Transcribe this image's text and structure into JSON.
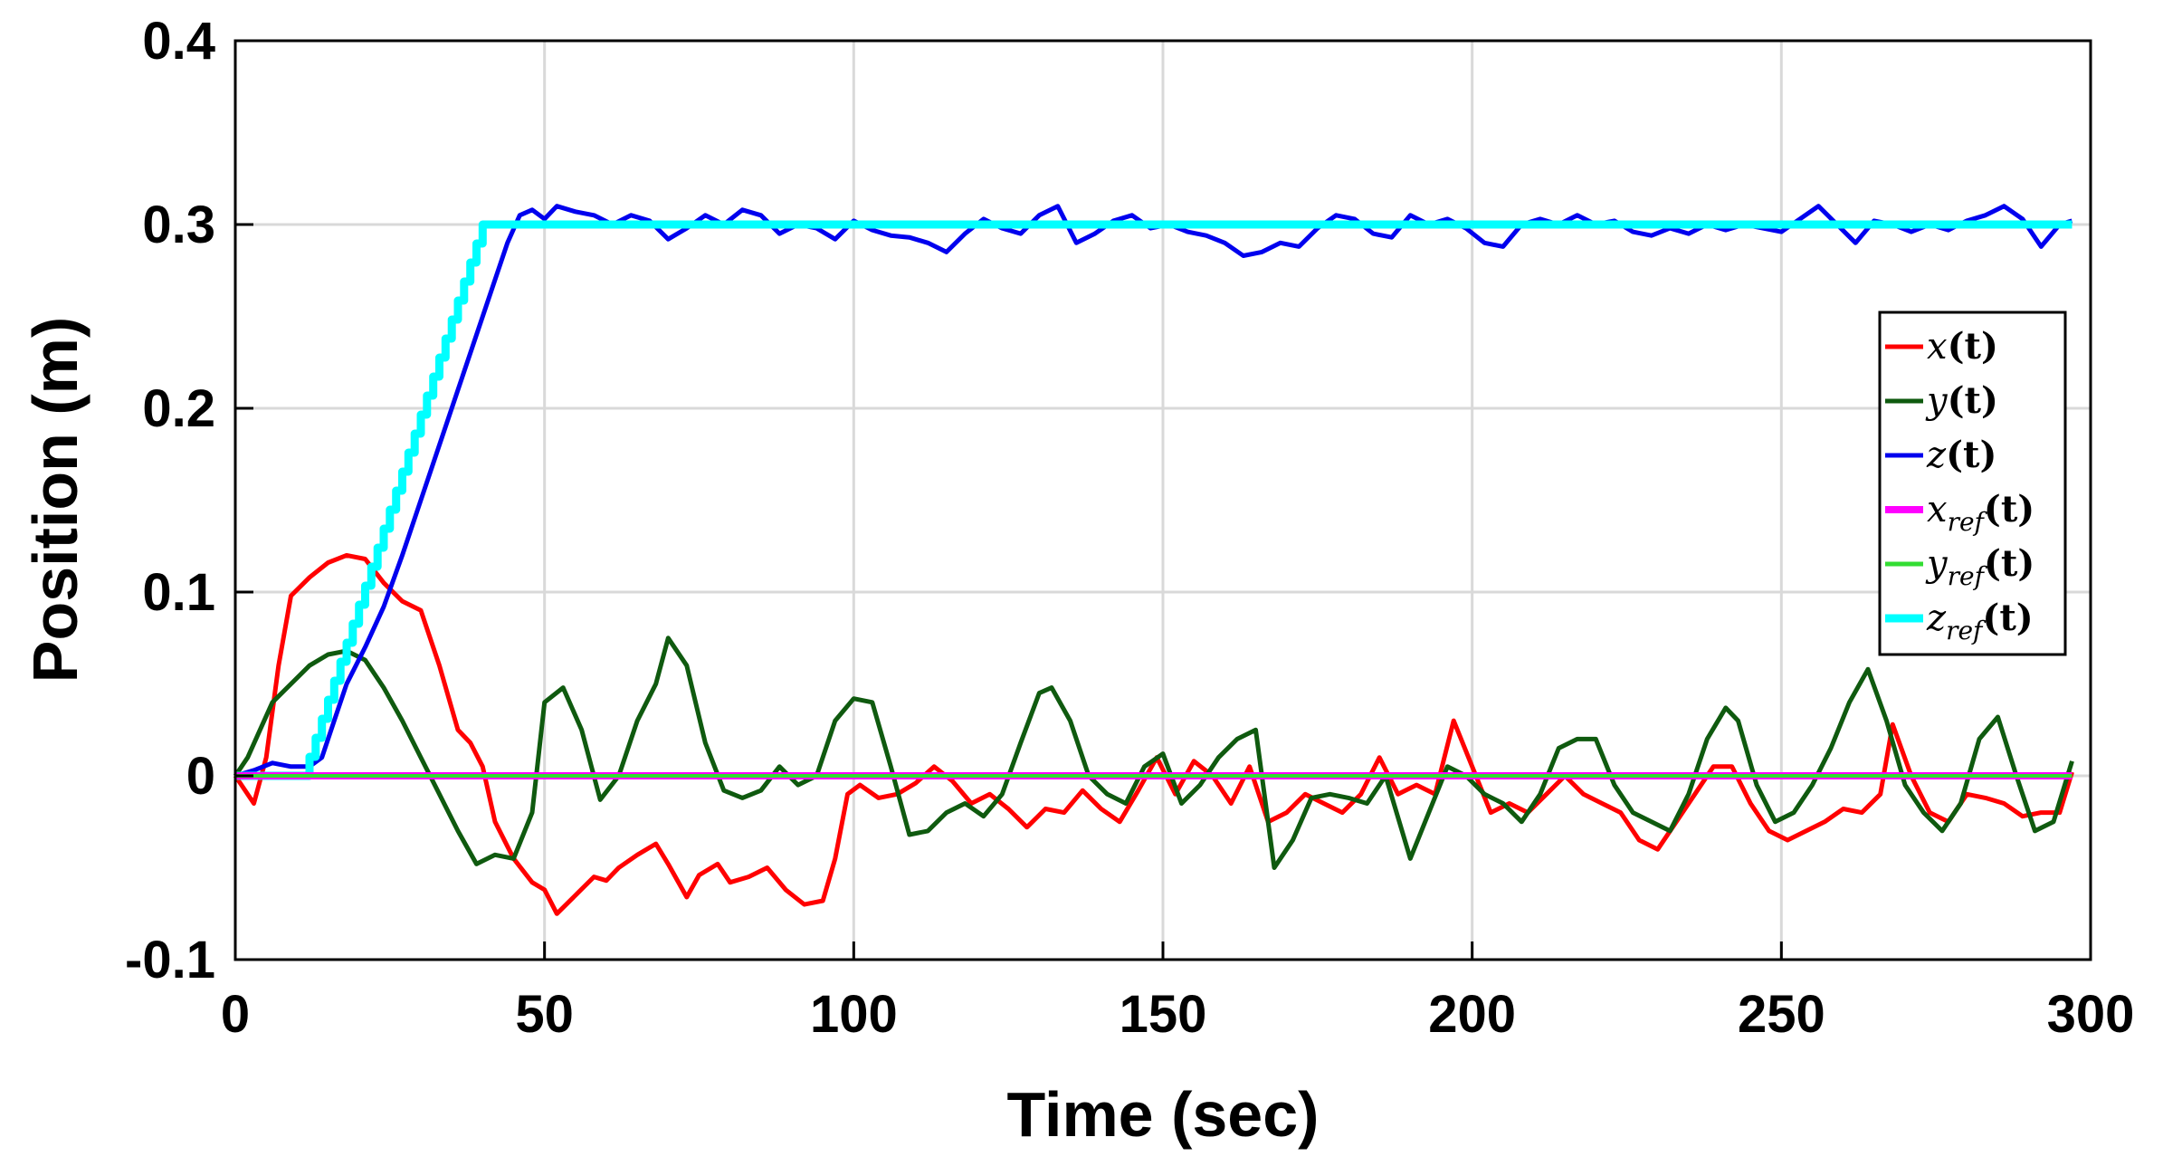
{
  "chart_data": {
    "type": "line",
    "title": "",
    "xlabel": "Time (sec)",
    "ylabel": "Position (m)",
    "xlim": [
      0,
      300
    ],
    "ylim": [
      -0.1,
      0.4
    ],
    "xticks": [
      0,
      50,
      100,
      150,
      200,
      250,
      300
    ],
    "xtick_labels": [
      "0",
      "50",
      "100",
      "150",
      "200",
      "250",
      "300"
    ],
    "yticks": [
      -0.1,
      0,
      0.1,
      0.2,
      0.3,
      0.4
    ],
    "ytick_labels": [
      "-0.1",
      "0",
      "0.1",
      "0.2",
      "0.3",
      "0.4"
    ],
    "grid": true,
    "legend_position": "right",
    "series": [
      {
        "name": "x(t)",
        "legend": {
          "base": "x",
          "sub": "",
          "arg": "(t)"
        },
        "color": "#ff0000",
        "x": [
          0,
          3,
          5,
          7,
          9,
          12,
          15,
          18,
          21,
          24,
          27,
          30,
          33,
          36,
          38,
          40,
          42,
          45,
          48,
          50,
          52,
          55,
          58,
          60,
          62,
          65,
          68,
          70,
          73,
          75,
          78,
          80,
          83,
          86,
          89,
          92,
          95,
          97,
          99,
          101,
          104,
          107,
          110,
          113,
          116,
          119,
          122,
          125,
          128,
          131,
          134,
          137,
          140,
          143,
          146,
          149,
          152,
          155,
          158,
          161,
          164,
          167,
          170,
          173,
          176,
          179,
          182,
          185,
          188,
          191,
          194,
          197,
          200,
          203,
          206,
          209,
          212,
          215,
          218,
          221,
          224,
          227,
          230,
          233,
          236,
          239,
          242,
          245,
          248,
          251,
          254,
          257,
          260,
          263,
          266,
          268,
          271,
          274,
          277,
          280,
          283,
          286,
          289,
          292,
          295,
          297
        ],
        "y": [
          0,
          -0.015,
          0.01,
          0.06,
          0.098,
          0.108,
          0.116,
          0.12,
          0.118,
          0.105,
          0.095,
          0.09,
          0.06,
          0.025,
          0.018,
          0.005,
          -0.025,
          -0.045,
          -0.058,
          -0.062,
          -0.075,
          -0.065,
          -0.055,
          -0.057,
          -0.05,
          -0.043,
          -0.037,
          -0.048,
          -0.066,
          -0.054,
          -0.048,
          -0.058,
          -0.055,
          -0.05,
          -0.062,
          -0.07,
          -0.068,
          -0.045,
          -0.01,
          -0.005,
          -0.012,
          -0.01,
          -0.004,
          0.005,
          -0.003,
          -0.015,
          -0.01,
          -0.018,
          -0.028,
          -0.018,
          -0.02,
          -0.008,
          -0.018,
          -0.025,
          -0.008,
          0.01,
          -0.01,
          0.008,
          0.0,
          -0.015,
          0.005,
          -0.025,
          -0.02,
          -0.01,
          -0.015,
          -0.02,
          -0.01,
          0.01,
          -0.01,
          -0.005,
          -0.01,
          0.03,
          0.005,
          -0.02,
          -0.015,
          -0.02,
          -0.01,
          0.0,
          -0.01,
          -0.015,
          -0.02,
          -0.035,
          -0.04,
          -0.025,
          -0.01,
          0.005,
          0.005,
          -0.015,
          -0.03,
          -0.035,
          -0.03,
          -0.025,
          -0.018,
          -0.02,
          -0.01,
          0.028,
          0.0,
          -0.02,
          -0.025,
          -0.01,
          -0.012,
          -0.015,
          -0.022,
          -0.02,
          -0.02,
          0.002
        ],
        "line_width": 5
      },
      {
        "name": "y(t)",
        "legend": {
          "base": "y",
          "sub": "",
          "arg": "(t)"
        },
        "color": "#0f5a0f",
        "x": [
          0,
          2,
          4,
          6,
          9,
          12,
          15,
          18,
          21,
          24,
          27,
          30,
          33,
          36,
          39,
          42,
          45,
          48,
          50,
          53,
          56,
          59,
          62,
          65,
          68,
          70,
          73,
          76,
          79,
          82,
          85,
          88,
          91,
          94,
          97,
          100,
          103,
          106,
          109,
          112,
          115,
          118,
          121,
          124,
          127,
          130,
          132,
          135,
          138,
          141,
          144,
          147,
          150,
          153,
          156,
          159,
          162,
          165,
          168,
          171,
          174,
          177,
          180,
          183,
          186,
          190,
          193,
          196,
          199,
          202,
          205,
          208,
          211,
          214,
          217,
          220,
          223,
          226,
          229,
          232,
          235,
          238,
          241,
          243,
          246,
          249,
          252,
          255,
          258,
          261,
          264,
          267,
          270,
          273,
          276,
          279,
          282,
          285,
          288,
          291,
          294,
          297
        ],
        "y": [
          0,
          0.01,
          0.025,
          0.04,
          0.05,
          0.06,
          0.066,
          0.068,
          0.063,
          0.048,
          0.03,
          0.01,
          -0.01,
          -0.03,
          -0.048,
          -0.043,
          -0.045,
          -0.02,
          0.04,
          0.048,
          0.025,
          -0.013,
          0.0,
          0.03,
          0.05,
          0.075,
          0.06,
          0.018,
          -0.008,
          -0.012,
          -0.008,
          0.005,
          -0.005,
          0.0,
          0.03,
          0.042,
          0.04,
          0.005,
          -0.032,
          -0.03,
          -0.02,
          -0.015,
          -0.022,
          -0.01,
          0.018,
          0.045,
          0.048,
          0.03,
          0.0,
          -0.01,
          -0.015,
          0.005,
          0.012,
          -0.015,
          -0.005,
          0.01,
          0.02,
          0.025,
          -0.05,
          -0.035,
          -0.012,
          -0.01,
          -0.012,
          -0.015,
          0.0,
          -0.045,
          -0.02,
          0.005,
          0.0,
          -0.01,
          -0.015,
          -0.025,
          -0.01,
          0.015,
          0.02,
          0.02,
          -0.005,
          -0.02,
          -0.025,
          -0.03,
          -0.01,
          0.02,
          0.037,
          0.03,
          -0.005,
          -0.025,
          -0.02,
          -0.005,
          0.015,
          0.04,
          0.058,
          0.03,
          -0.005,
          -0.02,
          -0.03,
          -0.015,
          0.02,
          0.032,
          0.0,
          -0.03,
          -0.025,
          0.008
        ],
        "line_width": 5
      },
      {
        "name": "z(t)",
        "legend": {
          "base": "z",
          "sub": "",
          "arg": "(t)"
        },
        "color": "#0000ee",
        "x": [
          0,
          3,
          6,
          9,
          12,
          14,
          16,
          18,
          21,
          24,
          27,
          30,
          33,
          36,
          39,
          42,
          44,
          46,
          48,
          50,
          52,
          55,
          58,
          61,
          64,
          67,
          70,
          73,
          76,
          79,
          82,
          85,
          88,
          91,
          94,
          97,
          100,
          103,
          106,
          109,
          112,
          115,
          118,
          121,
          124,
          127,
          130,
          133,
          136,
          139,
          142,
          145,
          148,
          151,
          154,
          157,
          160,
          163,
          166,
          169,
          172,
          175,
          178,
          181,
          184,
          187,
          190,
          193,
          196,
          199,
          202,
          205,
          208,
          211,
          214,
          217,
          220,
          223,
          226,
          229,
          232,
          235,
          238,
          241,
          244,
          247,
          250,
          253,
          256,
          259,
          262,
          265,
          268,
          271,
          274,
          277,
          280,
          283,
          286,
          289,
          292,
          295,
          297
        ],
        "y": [
          0,
          0.003,
          0.007,
          0.005,
          0.005,
          0.01,
          0.03,
          0.05,
          0.07,
          0.092,
          0.12,
          0.15,
          0.18,
          0.21,
          0.24,
          0.27,
          0.29,
          0.305,
          0.308,
          0.303,
          0.31,
          0.307,
          0.305,
          0.3,
          0.305,
          0.302,
          0.292,
          0.298,
          0.305,
          0.3,
          0.308,
          0.305,
          0.295,
          0.3,
          0.298,
          0.292,
          0.302,
          0.297,
          0.294,
          0.293,
          0.29,
          0.285,
          0.295,
          0.303,
          0.298,
          0.295,
          0.305,
          0.31,
          0.29,
          0.295,
          0.302,
          0.305,
          0.298,
          0.3,
          0.296,
          0.294,
          0.29,
          0.283,
          0.285,
          0.29,
          0.288,
          0.298,
          0.305,
          0.303,
          0.295,
          0.293,
          0.305,
          0.3,
          0.303,
          0.298,
          0.29,
          0.288,
          0.3,
          0.303,
          0.3,
          0.305,
          0.3,
          0.302,
          0.296,
          0.294,
          0.298,
          0.295,
          0.3,
          0.297,
          0.3,
          0.298,
          0.296,
          0.303,
          0.31,
          0.3,
          0.29,
          0.302,
          0.3,
          0.296,
          0.3,
          0.297,
          0.302,
          0.305,
          0.31,
          0.303,
          0.288,
          0.3,
          0.302
        ],
        "line_width": 5
      },
      {
        "name": "x_ref(t)",
        "legend": {
          "base": "x",
          "sub": "ref",
          "arg": "(t)"
        },
        "color": "#ff00ff",
        "x": [
          0,
          297
        ],
        "y": [
          0,
          0
        ],
        "line_width": 8
      },
      {
        "name": "y_ref(t)",
        "legend": {
          "base": "y",
          "sub": "ref",
          "arg": "(t)"
        },
        "color": "#33dd33",
        "x": [
          0,
          297
        ],
        "y": [
          0,
          0
        ],
        "line_width": 4
      },
      {
        "name": "z_ref(t)",
        "legend": {
          "base": "z",
          "sub": "ref",
          "arg": "(t)"
        },
        "color": "#00ffff",
        "x": [
          0,
          11,
          40,
          297
        ],
        "y": [
          0,
          0,
          0.3,
          0.3
        ],
        "staircase": true,
        "step": 1,
        "line_width": 9
      }
    ]
  }
}
